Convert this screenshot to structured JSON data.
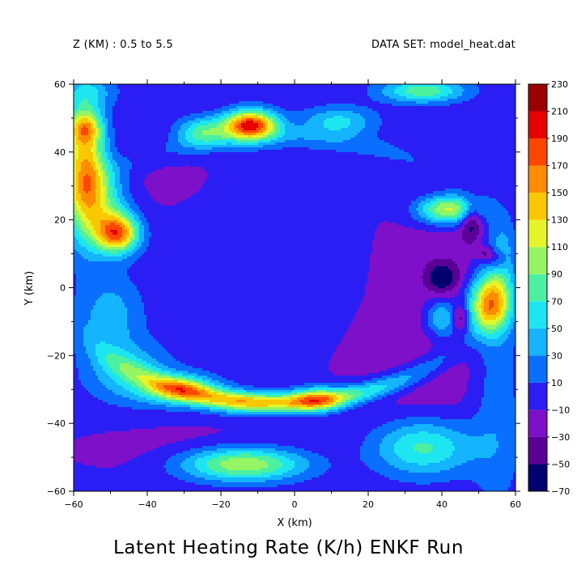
{
  "header": {
    "left": "Z (KM) : 0.5 to 5.5",
    "right": "DATA SET: model_heat.dat"
  },
  "chart_data": {
    "type": "heatmap",
    "title": "Latent Heating Rate (K/h) ENKF Run",
    "xlabel": "X (km)",
    "ylabel": "Y (km)",
    "xlim": [
      -60,
      60
    ],
    "ylim": [
      -60,
      60
    ],
    "x_ticks": [
      -60,
      -40,
      -20,
      0,
      20,
      40,
      60
    ],
    "y_ticks": [
      -60,
      -40,
      -20,
      0,
      20,
      40,
      60
    ],
    "colorbar": {
      "levels": [
        -70,
        -50,
        -30,
        -10,
        10,
        30,
        50,
        70,
        90,
        110,
        130,
        150,
        170,
        190,
        210,
        230
      ],
      "colors": [
        "#00006e",
        "#5a0096",
        "#7d10c8",
        "#2a1ef5",
        "#0a6eff",
        "#14b4ff",
        "#1ee6f0",
        "#4cf0a0",
        "#96f564",
        "#e6f52a",
        "#fac800",
        "#ff8c00",
        "#ff4600",
        "#e60000",
        "#9b0000"
      ]
    },
    "features": [
      {
        "name": "eyewall-south-arc",
        "x": -30,
        "y": -30,
        "value": 200
      },
      {
        "name": "eyewall-south-core",
        "x": 5,
        "y": -33,
        "value": 200
      },
      {
        "name": "northwest-band",
        "x": -57,
        "y": 38,
        "value": 150
      },
      {
        "name": "west-cell",
        "x": -48,
        "y": 16,
        "value": 200
      },
      {
        "name": "north-cell",
        "x": -12,
        "y": 48,
        "value": 210
      },
      {
        "name": "east-cell",
        "x": 53,
        "y": -5,
        "value": 180
      },
      {
        "name": "northeast-cell",
        "x": 42,
        "y": 23,
        "value": 150
      },
      {
        "name": "southeast-band",
        "x": 33,
        "y": -48,
        "value": 80
      },
      {
        "name": "south-band",
        "x": -14,
        "y": -52,
        "value": 130
      },
      {
        "name": "eye-region",
        "x": -5,
        "y": 2,
        "value": 0
      }
    ]
  }
}
